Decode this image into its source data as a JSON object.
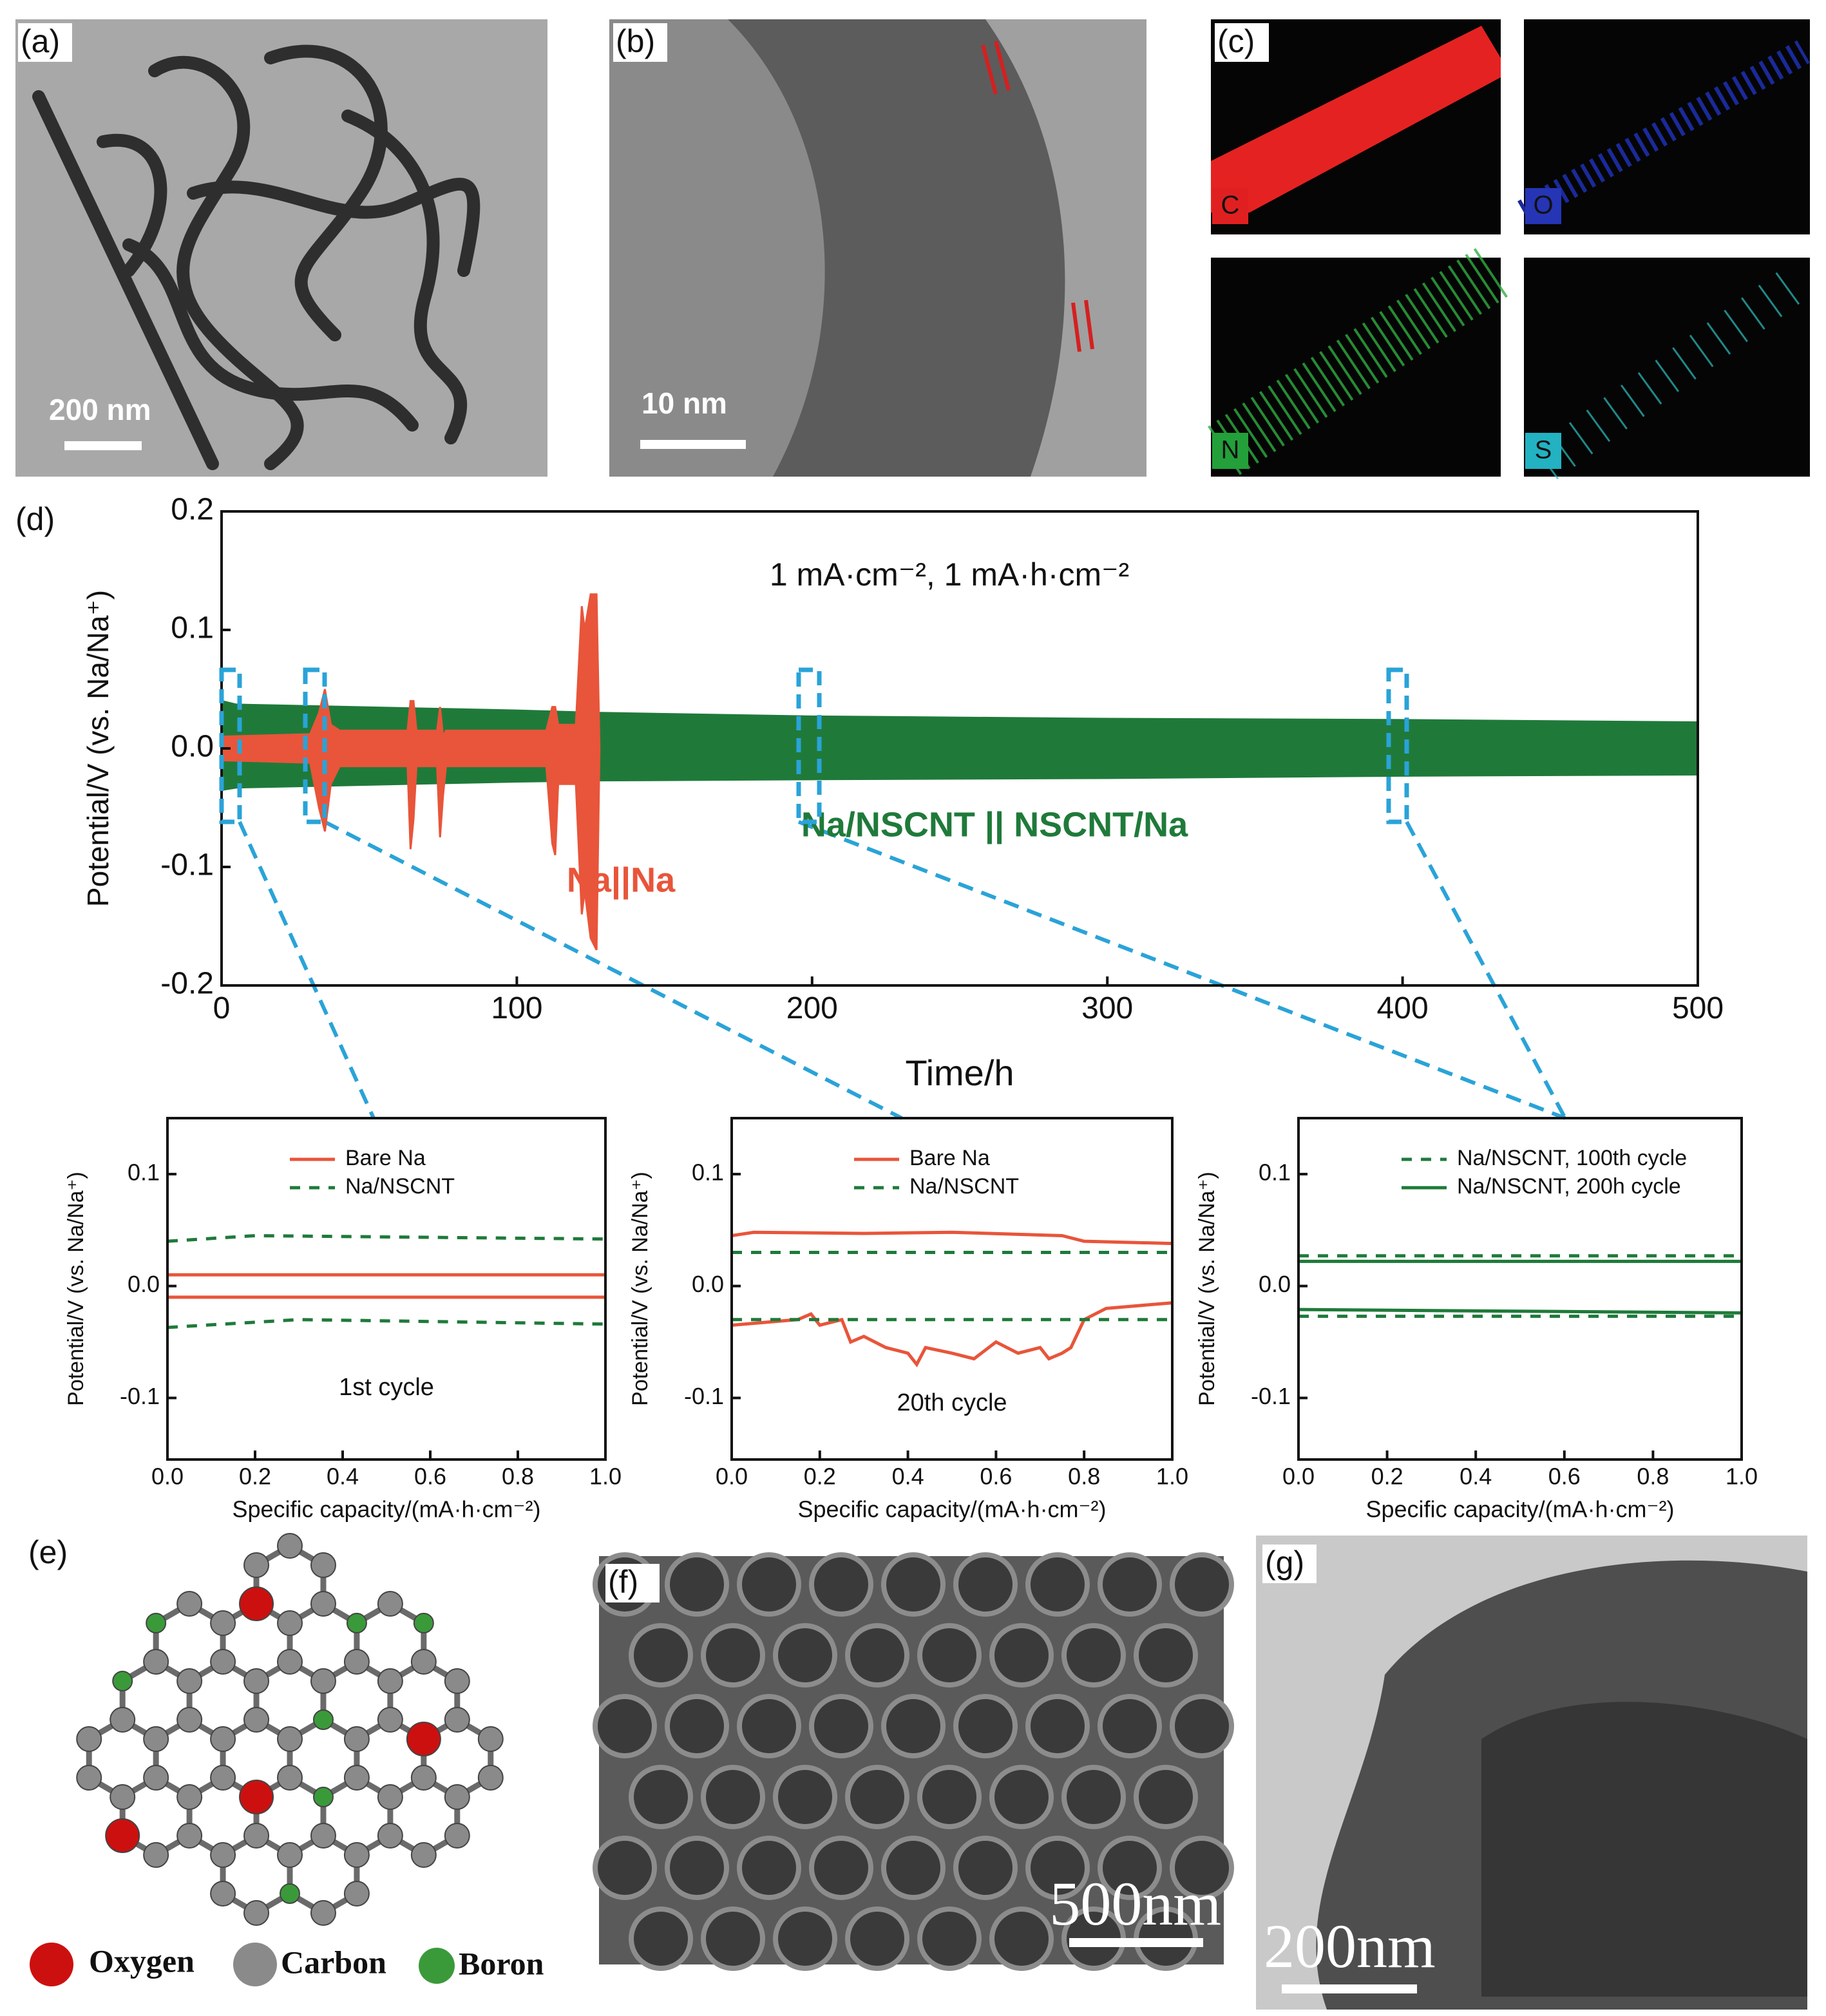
{
  "panels": {
    "a": {
      "label": "(a)",
      "scale": "200 nm"
    },
    "b": {
      "label": "(b)",
      "scale": "10 nm"
    },
    "c": {
      "label": "(c)",
      "elements": [
        "C",
        "O",
        "N",
        "S"
      ]
    },
    "d": {
      "label": "(d)"
    },
    "e": {
      "label": "(e)",
      "legend": [
        "Oxygen",
        "Carbon",
        "Boron"
      ]
    },
    "f": {
      "label": "(f)",
      "scale": "500nm"
    },
    "g": {
      "label": "(g)",
      "scale": "200nm"
    }
  },
  "chart_data": [
    {
      "type": "band",
      "annotation": "1 mA·cm⁻², 1 mA·h·cm⁻²",
      "x_label": "Time/h",
      "y_label": "Potential/V (vs. Na/Na⁺)",
      "xlim": [
        0,
        500
      ],
      "xticks": [
        0,
        100,
        200,
        300,
        400,
        500
      ],
      "ylim": [
        -0.2,
        0.2
      ],
      "yticks": [
        {
          "value": 0.2,
          "label": "0.2"
        },
        {
          "value": 0.1,
          "label": "0.1"
        },
        {
          "value": 0,
          "label": "0.0"
        },
        {
          "value": -0.1,
          "label": "-0.1"
        },
        {
          "value": -0.2,
          "label": "-0.2"
        }
      ],
      "series": [
        {
          "name": "Na/NSCNT || NSCNT/Na",
          "color": "#1f7a3a",
          "x": [
            0,
            5,
            100,
            128,
            200,
            300,
            400,
            500
          ],
          "upper": [
            0.04,
            0.037,
            0.032,
            0.03,
            0.027,
            0.025,
            0.024,
            0.022
          ],
          "lower": [
            -0.035,
            -0.033,
            -0.028,
            -0.027,
            -0.026,
            -0.025,
            -0.023,
            -0.022
          ]
        },
        {
          "name": "Na||Na",
          "color": "#e8553a",
          "x": [
            0,
            30,
            33,
            35,
            37,
            40,
            63,
            64,
            65,
            66,
            73,
            74,
            75,
            76,
            110,
            112,
            113,
            114,
            120,
            122,
            123,
            125,
            127,
            128
          ],
          "upper": [
            0.01,
            0.012,
            0.03,
            0.05,
            0.02,
            0.015,
            0.015,
            0.04,
            0.04,
            0.015,
            0.015,
            0.035,
            0.01,
            0.015,
            0.015,
            0.035,
            0.035,
            0.02,
            0.02,
            0.12,
            0.1,
            0.13,
            0.13,
            0
          ],
          "lower": [
            -0.01,
            -0.012,
            -0.05,
            -0.07,
            -0.03,
            -0.015,
            -0.015,
            -0.085,
            -0.06,
            -0.015,
            -0.015,
            -0.075,
            -0.04,
            -0.015,
            -0.015,
            -0.08,
            -0.09,
            -0.03,
            -0.03,
            -0.14,
            -0.12,
            -0.16,
            -0.17,
            0
          ]
        }
      ]
    },
    {
      "type": "line",
      "annotation": "1st cycle",
      "x_label": "Specific capacity/(mA·h·cm⁻²)",
      "y_label": "Potential/V (vs. Na/Na⁺)",
      "xlim": [
        0,
        1
      ],
      "xticks": [
        {
          "value": 0,
          "label": "0.0"
        },
        0.2,
        0.4,
        0.6,
        0.8,
        {
          "value": 1,
          "label": "1.0"
        }
      ],
      "ylim": [
        -0.155,
        0.15
      ],
      "yticks": [
        {
          "value": 0.1,
          "label": "0.1"
        },
        {
          "value": 0,
          "label": "0.0"
        },
        {
          "value": -0.1,
          "label": "-0.1"
        }
      ],
      "series": [
        {
          "name": "Bare Na",
          "color": "#e8553a",
          "dashed": false,
          "x": [
            0,
            1,
            null,
            0,
            1
          ],
          "values": [
            0.01,
            0.01,
            null,
            -0.01,
            -0.01
          ]
        },
        {
          "name": "Na/NSCNT",
          "color": "#1f7a3a",
          "dashed": true,
          "x": [
            0,
            0.2,
            1,
            null,
            0,
            0.3,
            1
          ],
          "values": [
            0.04,
            0.045,
            0.042,
            null,
            -0.037,
            -0.03,
            -0.034
          ]
        }
      ]
    },
    {
      "type": "line",
      "annotation": "20th cycle",
      "x_label": "Specific capacity/(mA·h·cm⁻²)",
      "y_label": "Potential/V (vs. Na/Na⁺)",
      "xlim": [
        0,
        1
      ],
      "xticks": [
        {
          "value": 0,
          "label": "0.0"
        },
        0.2,
        0.4,
        0.6,
        0.8,
        {
          "value": 1,
          "label": "1.0"
        }
      ],
      "ylim": [
        -0.155,
        0.15
      ],
      "yticks": [
        {
          "value": 0.1,
          "label": "0.1"
        },
        {
          "value": 0,
          "label": "0.0"
        },
        {
          "value": -0.1,
          "label": "-0.1"
        }
      ],
      "series": [
        {
          "name": "Bare Na",
          "color": "#e8553a",
          "dashed": false,
          "x": [
            0,
            0.05,
            0.3,
            0.5,
            0.75,
            0.8,
            1,
            null,
            0,
            0.15,
            0.18,
            0.2,
            0.25,
            0.27,
            0.3,
            0.35,
            0.4,
            0.42,
            0.44,
            0.5,
            0.55,
            0.6,
            0.65,
            0.7,
            0.72,
            0.75,
            0.77,
            0.8,
            0.85,
            1
          ],
          "values": [
            0.045,
            0.048,
            0.047,
            0.048,
            0.045,
            0.04,
            0.038,
            null,
            -0.035,
            -0.03,
            -0.025,
            -0.035,
            -0.03,
            -0.05,
            -0.045,
            -0.055,
            -0.06,
            -0.07,
            -0.055,
            -0.06,
            -0.065,
            -0.05,
            -0.06,
            -0.055,
            -0.065,
            -0.06,
            -0.055,
            -0.03,
            -0.02,
            -0.015
          ]
        },
        {
          "name": "Na/NSCNT",
          "color": "#1f7a3a",
          "dashed": true,
          "x": [
            0,
            1,
            null,
            0,
            1
          ],
          "values": [
            0.03,
            0.03,
            null,
            -0.03,
            -0.03
          ]
        }
      ]
    },
    {
      "type": "line",
      "x_label": "Specific capacity/(mA·h·cm⁻²)",
      "y_label": "Potential/V (vs. Na/Na⁺)",
      "xlim": [
        0,
        1
      ],
      "xticks": [
        {
          "value": 0,
          "label": "0.0"
        },
        0.2,
        0.4,
        0.6,
        0.8,
        {
          "value": 1,
          "label": "1.0"
        }
      ],
      "ylim": [
        -0.155,
        0.15
      ],
      "yticks": [
        {
          "value": 0.1,
          "label": "0.1"
        },
        {
          "value": 0,
          "label": "0.0"
        },
        {
          "value": -0.1,
          "label": "-0.1"
        }
      ],
      "series": [
        {
          "name": "Na/NSCNT, 100th cycle",
          "color": "#1f7a3a",
          "dashed": true,
          "x": [
            0,
            1,
            null,
            0,
            1
          ],
          "values": [
            0.027,
            0.027,
            null,
            -0.027,
            -0.027
          ]
        },
        {
          "name": "Na/NSCNT, 200h cycle",
          "color": "#1f7a3a",
          "dashed": false,
          "x": [
            0,
            1,
            null,
            0,
            1
          ],
          "values": [
            0.022,
            0.022,
            null,
            -0.021,
            -0.024
          ]
        }
      ]
    }
  ]
}
